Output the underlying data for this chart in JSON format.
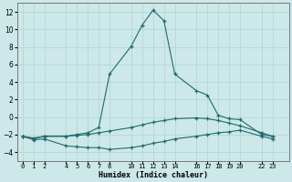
{
  "xlabel": "Humidex (Indice chaleur)",
  "background_color": "#cde8e8",
  "grid_color": "#b8d8d8",
  "line_color": "#1e6b6b",
  "ylim": [
    -5,
    13
  ],
  "xlim": [
    -0.5,
    24.5
  ],
  "yticks": [
    -4,
    -2,
    0,
    2,
    4,
    6,
    8,
    10,
    12
  ],
  "xticks": [
    0,
    1,
    2,
    4,
    5,
    6,
    7,
    8,
    10,
    11,
    12,
    13,
    14,
    16,
    17,
    18,
    19,
    20,
    22,
    23
  ],
  "xtick_labels": [
    "0",
    "1",
    "2",
    "4",
    "5",
    "6",
    "7",
    "8",
    "10",
    "11",
    "12",
    "13",
    "14",
    "16",
    "17",
    "18",
    "19",
    "20",
    "22",
    "23"
  ],
  "line_peak_x": [
    0,
    1,
    2,
    4,
    5,
    6,
    7,
    8,
    10,
    11,
    12,
    13,
    14,
    16,
    17,
    18,
    19,
    20,
    22,
    23
  ],
  "line_peak_y": [
    -2.2,
    -2.5,
    -2.2,
    -2.2,
    -2.0,
    -1.8,
    -1.2,
    4.9,
    8.1,
    10.5,
    12.2,
    11.0,
    4.9,
    3.0,
    2.5,
    0.2,
    -0.2,
    -0.3,
    -2.0,
    -2.2
  ],
  "line_mid_x": [
    0,
    1,
    2,
    4,
    5,
    6,
    7,
    8,
    10,
    11,
    12,
    13,
    14,
    16,
    17,
    18,
    19,
    20,
    22,
    23
  ],
  "line_mid_y": [
    -2.2,
    -2.4,
    -2.2,
    -2.2,
    -2.1,
    -2.0,
    -1.8,
    -1.6,
    -1.2,
    -0.9,
    -0.6,
    -0.4,
    -0.2,
    -0.1,
    -0.2,
    -0.4,
    -0.7,
    -1.0,
    -1.8,
    -2.2
  ],
  "line_bot_x": [
    0,
    1,
    2,
    4,
    5,
    6,
    7,
    8,
    10,
    11,
    12,
    13,
    14,
    16,
    17,
    18,
    19,
    20,
    22,
    23
  ],
  "line_bot_y": [
    -2.2,
    -2.6,
    -2.5,
    -3.3,
    -3.4,
    -3.5,
    -3.5,
    -3.7,
    -3.5,
    -3.3,
    -3.0,
    -2.8,
    -2.5,
    -2.2,
    -2.0,
    -1.8,
    -1.7,
    -1.5,
    -2.2,
    -2.5
  ]
}
